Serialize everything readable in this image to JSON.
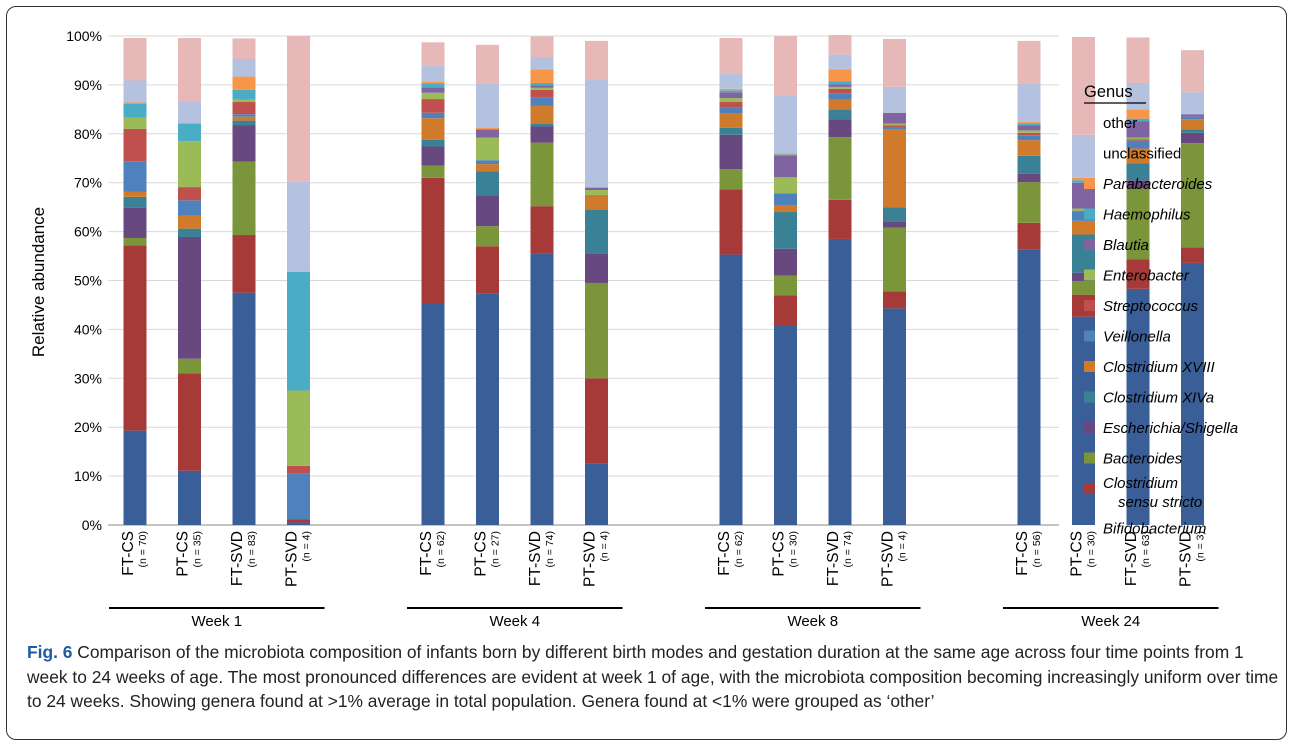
{
  "chart_data": {
    "type": "bar",
    "stacked": true,
    "ylabel": "Relative abundance",
    "yticks": [
      "0%",
      "10%",
      "20%",
      "30%",
      "40%",
      "50%",
      "60%",
      "70%",
      "80%",
      "90%",
      "100%"
    ],
    "ylim": [
      0,
      100
    ],
    "legend_title": "Genus",
    "legend_position": "right",
    "groups": [
      {
        "label": "Week 1",
        "bars": [
          0,
          1,
          2,
          3
        ]
      },
      {
        "label": "Week 4",
        "bars": [
          4,
          5,
          6,
          7
        ]
      },
      {
        "label": "Week 8",
        "bars": [
          8,
          9,
          10,
          11
        ]
      },
      {
        "label": "Week 24",
        "bars": [
          12,
          13,
          14,
          15
        ]
      }
    ],
    "categories": [
      {
        "label": "FT-CS",
        "n": "(n = 70)"
      },
      {
        "label": "PT-CS",
        "n": "(n = 35)"
      },
      {
        "label": "FT-SVD",
        "n": "(n = 83)"
      },
      {
        "label": "PT-SVD",
        "n": "(n = 4)"
      },
      {
        "label": "FT-CS",
        "n": "(n = 62)"
      },
      {
        "label": "PT-CS",
        "n": "(n = 27)"
      },
      {
        "label": "FT-SVD",
        "n": "(n = 74)"
      },
      {
        "label": "PT-SVD",
        "n": "(n = 4)"
      },
      {
        "label": "FT-CS",
        "n": "(n = 62)"
      },
      {
        "label": "PT-CS",
        "n": "(n = 30)"
      },
      {
        "label": "FT-SVD",
        "n": "(n = 74)"
      },
      {
        "label": "PT-SVD",
        "n": "(n = 4)"
      },
      {
        "label": "FT-CS",
        "n": "(n = 56)"
      },
      {
        "label": "PT-CS",
        "n": "(n = 30)"
      },
      {
        "label": "FT-SVD",
        "n": "(n = 63)"
      },
      {
        "label": "PT-SVD",
        "n": "(n = 3)"
      }
    ],
    "series": [
      {
        "name": "Bifidobacterium",
        "italic": true,
        "color": "#3a5f98",
        "values": [
          19.3,
          11.1,
          47.5,
          0.5,
          45.3,
          47.3,
          55.5,
          12.5,
          55.3,
          40.9,
          58.5,
          44.3,
          56.3,
          42.6,
          48.3,
          53.6
        ]
      },
      {
        "name": "Clostridium sensu stricto",
        "italic": true,
        "color": "#a53a38",
        "values": [
          37.9,
          19.9,
          11.8,
          0.7,
          25.7,
          9.7,
          9.7,
          17.5,
          13.3,
          6.1,
          8.0,
          3.5,
          5.5,
          4.5,
          6.0,
          3.2
        ]
      },
      {
        "name": "Bacteroides",
        "italic": true,
        "color": "#7b963a",
        "values": [
          1.5,
          3.0,
          15.0,
          0.0,
          2.5,
          4.1,
          13.0,
          19.5,
          4.2,
          4.0,
          12.8,
          13.0,
          8.3,
          2.8,
          14.5,
          21.3
        ]
      },
      {
        "name": "Escherichia/Shigella",
        "italic": true,
        "color": "#67487f",
        "values": [
          6.2,
          24.9,
          7.4,
          0.0,
          3.9,
          6.3,
          3.3,
          6.0,
          7.0,
          5.5,
          3.7,
          1.3,
          1.7,
          1.7,
          1.7,
          2.1
        ]
      },
      {
        "name": "Clostridium XIVa",
        "italic": true,
        "color": "#3a8195",
        "values": [
          2.2,
          1.7,
          1.0,
          0.0,
          1.4,
          4.9,
          0.5,
          9.0,
          1.4,
          7.5,
          2.0,
          2.9,
          3.7,
          7.8,
          3.5,
          0.7
        ]
      },
      {
        "name": "Clostridium XVIII",
        "italic": true,
        "color": "#d07b2c",
        "values": [
          1.1,
          2.7,
          0.8,
          0.0,
          4.4,
          1.5,
          3.7,
          3.0,
          2.9,
          1.3,
          2.0,
          15.9,
          3.2,
          2.8,
          3.0,
          2.1
        ]
      },
      {
        "name": "Veillonella",
        "italic": true,
        "color": "#4f81bd",
        "values": [
          6.2,
          3.1,
          0.5,
          9.3,
          1.1,
          0.8,
          1.8,
          0.0,
          1.3,
          2.5,
          1.3,
          0.5,
          1.0,
          2.0,
          1.6,
          0.5
        ]
      },
      {
        "name": "Streptococcus",
        "italic": true,
        "color": "#c0504d",
        "values": [
          6.6,
          2.7,
          2.5,
          1.6,
          2.8,
          0.0,
          1.5,
          0.0,
          1.1,
          0.0,
          0.9,
          0.3,
          0.5,
          0.0,
          0.3,
          0.0
        ]
      },
      {
        "name": "Enterobacter",
        "italic": true,
        "color": "#9bbb59",
        "values": [
          2.3,
          9.4,
          0.5,
          15.4,
          1.3,
          4.6,
          0.4,
          1.0,
          0.8,
          3.3,
          0.4,
          0.4,
          0.5,
          0.5,
          0.3,
          0.0
        ]
      },
      {
        "name": "Blautia",
        "italic": true,
        "color": "#8064a2",
        "values": [
          0.0,
          0.0,
          0.0,
          0.0,
          1.1,
          1.7,
          0.5,
          0.5,
          1.2,
          4.5,
          0.5,
          2.2,
          1.0,
          5.3,
          3.4,
          0.5
        ]
      },
      {
        "name": "Haemophilus",
        "italic": true,
        "color": "#4bacc6",
        "values": [
          2.8,
          3.6,
          2.0,
          24.3,
          0.8,
          0.0,
          0.5,
          0.0,
          0.4,
          0.2,
          0.6,
          0.0,
          0.4,
          0.5,
          0.5,
          0.0
        ]
      },
      {
        "name": "Parabacteroides",
        "italic": true,
        "color": "#f79646",
        "values": [
          0.3,
          0.0,
          2.7,
          0.0,
          0.3,
          0.3,
          2.8,
          0.0,
          0.3,
          0.2,
          2.5,
          0.0,
          0.3,
          0.5,
          1.9,
          0.0
        ]
      },
      {
        "name": "unclassified",
        "italic": false,
        "color": "#b4c2e0",
        "values": [
          4.5,
          4.5,
          3.6,
          18.5,
          3.4,
          9.1,
          2.5,
          22.0,
          3.2,
          11.9,
          3.0,
          5.3,
          7.9,
          8.8,
          5.4,
          4.5
        ]
      },
      {
        "name": "other",
        "italic": false,
        "color": "#e6b8b7",
        "values": [
          8.7,
          13.0,
          4.2,
          29.7,
          4.7,
          7.9,
          4.2,
          8.0,
          7.2,
          12.1,
          4.0,
          9.8,
          8.7,
          20.0,
          9.3,
          8.6
        ]
      }
    ]
  },
  "caption": {
    "fig_label": "Fig. 6",
    "text": " Comparison of the microbiota composition of infants born by different birth modes and gestation duration at the same age across four time points from 1 week to 24 weeks of age. The most pronounced differences are evident at week 1 of age, with the microbiota composition becoming increasingly uniform over time to 24 weeks. Showing genera found at >1% average in total population. Genera found at <1% were grouped as ‘other’"
  }
}
